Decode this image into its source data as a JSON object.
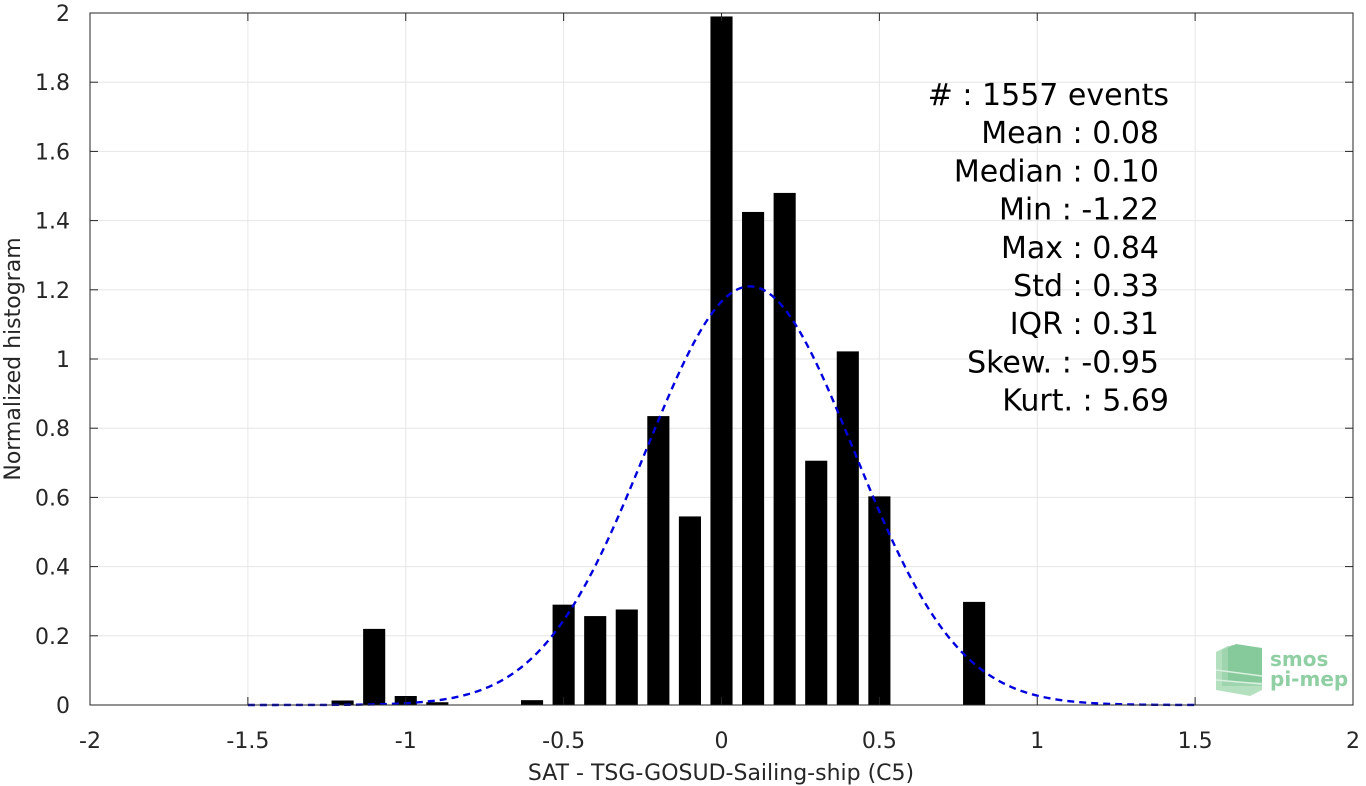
{
  "chart_data": {
    "type": "bar",
    "xlabel": "SAT - TSG-GOSUD-Sailing-ship (C5)",
    "ylabel": "Normalized histogram",
    "xlim": [
      -2,
      2
    ],
    "ylim": [
      0,
      2
    ],
    "xticks": [
      -2,
      -1.5,
      -1,
      -0.5,
      0,
      0.5,
      1,
      1.5,
      2
    ],
    "xtick_labels": [
      "-2",
      "-1.5",
      "-1",
      "-0.5",
      "0",
      "0.5",
      "1",
      "1.5",
      "2"
    ],
    "yticks": [
      0,
      0.2,
      0.4,
      0.6,
      0.8,
      1,
      1.2,
      1.4,
      1.6,
      1.8,
      2
    ],
    "ytick_labels": [
      "0",
      "0.2",
      "0.4",
      "0.6",
      "0.8",
      "1",
      "1.2",
      "1.4",
      "1.6",
      "1.8",
      "2"
    ],
    "grid": true,
    "bar_width": 0.07,
    "bars": [
      {
        "x": -1.2,
        "y": 0.013
      },
      {
        "x": -1.1,
        "y": 0.22
      },
      {
        "x": -1.0,
        "y": 0.026
      },
      {
        "x": -0.9,
        "y": 0.008
      },
      {
        "x": -0.6,
        "y": 0.014
      },
      {
        "x": -0.5,
        "y": 0.29
      },
      {
        "x": -0.4,
        "y": 0.257
      },
      {
        "x": -0.3,
        "y": 0.276
      },
      {
        "x": -0.2,
        "y": 0.835
      },
      {
        "x": -0.1,
        "y": 0.545
      },
      {
        "x": 0.0,
        "y": 1.99
      },
      {
        "x": 0.1,
        "y": 1.425
      },
      {
        "x": 0.2,
        "y": 1.48
      },
      {
        "x": 0.3,
        "y": 0.706
      },
      {
        "x": 0.4,
        "y": 1.022
      },
      {
        "x": 0.5,
        "y": 0.603
      },
      {
        "x": 0.8,
        "y": 0.298
      }
    ],
    "fit_curve": {
      "style": "dashed",
      "color": "#0000dd",
      "x_start": -1.5,
      "x_end": 1.5,
      "peak_y": 1.21,
      "peak_x": 0.09,
      "sigma": 0.33
    },
    "stats": [
      "#  : 1557 events",
      "Mean : 0.08",
      "Median : 0.10",
      "Min : -1.22",
      "Max : 0.84",
      "Std : 0.33",
      "IQR : 0.31",
      "Skew. : -0.95",
      "Kurt. : 5.69"
    ]
  },
  "logo": {
    "line1": "smos",
    "line2": "pi-mep",
    "color": "#8fcfa3"
  }
}
